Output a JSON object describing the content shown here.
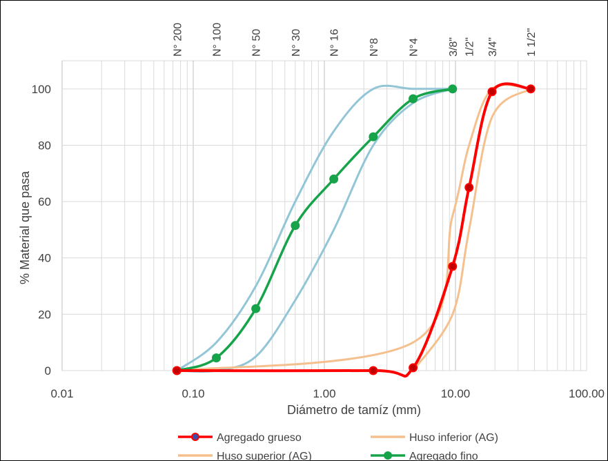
{
  "chart_data": {
    "type": "line",
    "x_scale": "log",
    "xlabel": "Diámetro de tamíz (mm)",
    "ylabel": "% Material que pasa",
    "xlim": [
      0.01,
      100
    ],
    "ylim": [
      0,
      110
    ],
    "x_tick_values": [
      0.01,
      0.1,
      1,
      10,
      100
    ],
    "x_tick_labels": [
      "0.01",
      "0.10",
      "1.00",
      "10.00",
      "100.00"
    ],
    "y_ticks": [
      0,
      20,
      40,
      60,
      80,
      100
    ],
    "grid": true,
    "legend_position": "bottom",
    "sieves": [
      {
        "label": "N° 200",
        "x": 0.075
      },
      {
        "label": "N° 100",
        "x": 0.15
      },
      {
        "label": "N° 50",
        "x": 0.3
      },
      {
        "label": "N° 30",
        "x": 0.6
      },
      {
        "label": "N° 16",
        "x": 1.18
      },
      {
        "label": "N°8",
        "x": 2.36
      },
      {
        "label": "N°4",
        "x": 4.75
      },
      {
        "label": "3/8\"",
        "x": 9.5
      },
      {
        "label": "1/2\"",
        "x": 12.7
      },
      {
        "label": "3/4\"",
        "x": 19
      },
      {
        "label": "1 1/2\"",
        "x": 37.5
      }
    ],
    "series": [
      {
        "name": "Huso superior (AG)",
        "color": "#92c5d6",
        "marker": "none",
        "x": [
          0.075,
          0.15,
          0.3,
          0.6,
          1.18,
          2.36,
          4.75,
          9.5
        ],
        "y": [
          0,
          10,
          30,
          60,
          85,
          100,
          100,
          100
        ]
      },
      {
        "name": "Huso superior (AG)",
        "color": "#92c5d6",
        "marker": "none",
        "x": [
          0.075,
          0.15,
          0.3,
          0.6,
          1.18,
          2.36,
          4.75,
          9.5
        ],
        "y": [
          0,
          0,
          5,
          25,
          50,
          80,
          95,
          100
        ]
      },
      {
        "name": "Huso inferior (AG)",
        "color": "#f5c08e",
        "marker": "none",
        "x": [
          0.075,
          4.75,
          9.5,
          12.7,
          19,
          37.5
        ],
        "y": [
          0,
          10,
          55,
          80,
          100,
          100
        ]
      },
      {
        "name": "Huso inferior (AG)",
        "color": "#f5c08e",
        "marker": "none",
        "x": [
          4.75,
          9.5,
          12.7,
          19,
          37.5
        ],
        "y": [
          0,
          20,
          50,
          90,
          100
        ]
      },
      {
        "name": "Agregado fino",
        "color": "#16a34a",
        "marker": "circle",
        "x": [
          0.075,
          0.15,
          0.3,
          0.6,
          1.18,
          2.36,
          4.75,
          9.5
        ],
        "y": [
          0,
          4.5,
          22,
          51.5,
          68,
          83,
          96.5,
          100
        ]
      },
      {
        "name": "Agregado grueso",
        "color": "#ff0000",
        "marker": "circle",
        "marker_fill": "#c00000",
        "x": [
          0.075,
          2.36,
          4.75,
          9.5,
          12.7,
          19,
          37.5
        ],
        "y": [
          0,
          0,
          1,
          37,
          65,
          99,
          100
        ]
      }
    ],
    "legend": [
      {
        "label": "Agregado grueso",
        "color": "#ff0000",
        "marker": "circle"
      },
      {
        "label": "Huso inferior (AG)",
        "color": "#f5c08e",
        "marker": "none"
      },
      {
        "label": "Huso superior (AG)",
        "color": "#f5c08e",
        "marker": "none"
      },
      {
        "label": "Agregado fino",
        "color": "#16a34a",
        "marker": "circle"
      }
    ]
  }
}
